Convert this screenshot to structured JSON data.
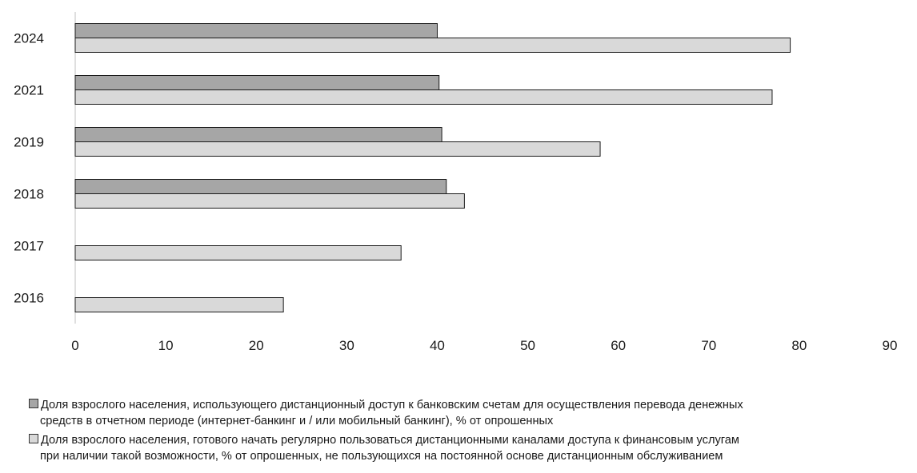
{
  "chart_data": {
    "type": "bar",
    "orientation": "horizontal",
    "title": "",
    "xlabel": "",
    "ylabel": "",
    "categories": [
      "2024",
      "2021",
      "2019",
      "2018",
      "2017",
      "2016"
    ],
    "xlim": [
      0,
      90
    ],
    "xticks": [
      "0",
      "10",
      "20",
      "30",
      "40",
      "50",
      "60",
      "70",
      "80",
      "90"
    ],
    "grid": false,
    "legend_placement": "bottom",
    "series": [
      {
        "name_line1": "Доля взрослого населения, использующего дистанционный доступ к банковским счетам для осуществления перевода денежных",
        "name_line2": "средств в отчетном периоде (интернет-банкинг и / или мобильный банкинг), % от опрошенных",
        "color": "#a6a6a6",
        "values": [
          40,
          40.2,
          40.5,
          41,
          null,
          null
        ]
      },
      {
        "name_line1": "Доля взрослого населения, готового начать регулярно пользоваться дистанционными каналами доступа к финансовым услугам",
        "name_line2": "при наличии такой возможности, % от опрошенных, не пользующихся на постоянной основе дистанционным обслуживанием",
        "color": "#d9d9d9",
        "values": [
          79,
          77,
          58,
          43,
          36,
          23
        ]
      }
    ]
  }
}
